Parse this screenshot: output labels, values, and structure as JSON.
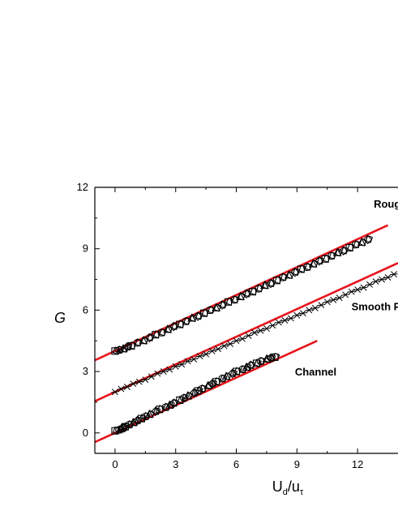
{
  "chart_data": {
    "type": "scatter",
    "title": "",
    "xlabel": {
      "main": "U",
      "sub1": "d",
      "sep": "/u",
      "sub2": "τ"
    },
    "ylabel": "G",
    "xlim": [
      -1,
      14
    ],
    "ylim": [
      -1,
      12
    ],
    "xticks": [
      0,
      3,
      6,
      9,
      12
    ],
    "yticks": [
      0,
      3,
      6,
      9,
      12
    ],
    "grid": false,
    "legend": "none",
    "colors": {
      "fit": "#e8141b",
      "marker": "#000000",
      "axis": "#000000"
    },
    "annotations": [
      {
        "text": "Roug",
        "x": 12.8,
        "y": 11.0
      },
      {
        "text": "Smooth P",
        "x": 11.7,
        "y": 6.0
      },
      {
        "text": "Channel",
        "x": 8.9,
        "y": 2.8
      }
    ],
    "series": [
      {
        "marker": "mixed-open",
        "x": [
          0,
          0.2,
          0.3,
          0.4,
          0.5,
          0.7,
          0.9,
          1.1,
          1.3,
          1.5,
          1.7,
          2,
          2.2,
          2.5,
          2.7,
          2.9,
          3.2,
          3.4,
          3.6,
          3.9,
          4.1,
          4.3,
          4.6,
          4.8,
          5,
          5.3,
          5.5,
          5.8,
          6,
          6.3,
          6.5,
          6.7,
          7,
          7.2,
          7.5,
          7.7,
          7.9
        ],
        "y": [
          0.1,
          0.15,
          0.2,
          0.25,
          0.3,
          0.4,
          0.5,
          0.6,
          0.7,
          0.8,
          0.9,
          1.05,
          1.15,
          1.25,
          1.35,
          1.45,
          1.6,
          1.7,
          1.8,
          1.95,
          2.05,
          2.15,
          2.3,
          2.4,
          2.5,
          2.65,
          2.75,
          2.9,
          3,
          3.1,
          3.2,
          3.3,
          3.4,
          3.5,
          3.6,
          3.65,
          3.7
        ],
        "fit": {
          "x": [
            -1,
            10
          ],
          "y": [
            -0.45,
            4.5
          ]
        }
      },
      {
        "marker": "cross",
        "x": [
          0,
          0.3,
          0.6,
          0.9,
          1.2,
          1.5,
          1.8,
          2.1,
          2.4,
          2.7,
          3,
          3.3,
          3.6,
          3.9,
          4.2,
          4.5,
          4.8,
          5.1,
          5.4,
          5.7,
          6,
          6.3,
          6.6,
          6.9,
          7.2,
          7.5,
          7.8,
          8.1,
          8.4,
          8.7,
          9,
          9.3,
          9.6,
          9.9,
          10.2,
          10.5,
          10.8,
          11.1,
          11.4,
          11.7,
          12,
          12.3,
          12.6,
          12.9,
          13.2,
          13.5,
          13.8
        ],
        "y": [
          2,
          2.15,
          2.25,
          2.4,
          2.5,
          2.6,
          2.75,
          2.9,
          3,
          3.1,
          3.25,
          3.35,
          3.5,
          3.6,
          3.75,
          3.85,
          4,
          4.1,
          4.25,
          4.35,
          4.5,
          4.6,
          4.75,
          4.9,
          5,
          5.1,
          5.25,
          5.4,
          5.5,
          5.6,
          5.75,
          5.85,
          6,
          6.1,
          6.25,
          6.4,
          6.5,
          6.6,
          6.75,
          6.9,
          7,
          7.1,
          7.25,
          7.4,
          7.5,
          7.6,
          7.75
        ],
        "fit": {
          "x": [
            -1,
            14
          ],
          "y": [
            1.55,
            8.3
          ]
        }
      },
      {
        "marker": "mixed-open",
        "x": [
          0,
          0.2,
          0.4,
          0.6,
          0.8,
          1.1,
          1.4,
          1.7,
          2,
          2.3,
          2.6,
          2.9,
          3.2,
          3.5,
          3.8,
          4.1,
          4.4,
          4.7,
          5,
          5.3,
          5.6,
          5.9,
          6.2,
          6.5,
          6.8,
          7.1,
          7.4,
          7.7,
          8,
          8.3,
          8.6,
          8.9,
          9.2,
          9.5,
          9.8,
          10.1,
          10.4,
          10.7,
          11,
          11.3,
          11.6,
          11.9,
          12.2,
          12.5
        ],
        "y": [
          4,
          4.05,
          4.1,
          4.2,
          4.25,
          4.4,
          4.5,
          4.65,
          4.8,
          4.9,
          5.05,
          5.2,
          5.3,
          5.45,
          5.6,
          5.7,
          5.85,
          6,
          6.1,
          6.25,
          6.4,
          6.5,
          6.65,
          6.8,
          6.9,
          7.05,
          7.2,
          7.3,
          7.45,
          7.6,
          7.7,
          7.85,
          8,
          8.1,
          8.25,
          8.4,
          8.5,
          8.65,
          8.8,
          8.9,
          9.05,
          9.2,
          9.3,
          9.45
        ],
        "fit": {
          "x": [
            -1,
            13.5
          ],
          "y": [
            3.55,
            10.15
          ]
        }
      }
    ]
  }
}
